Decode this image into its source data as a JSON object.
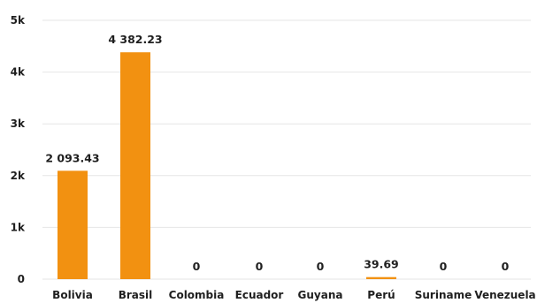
{
  "chart_data": {
    "type": "bar",
    "title": "",
    "xlabel": "",
    "ylabel": "",
    "categories": [
      "Bolivia",
      "Brasil",
      "Colombia",
      "Ecuador",
      "Guyana",
      "Perú",
      "Suriname",
      "Venezuela"
    ],
    "values": [
      2093.43,
      4382.23,
      0,
      0,
      0,
      39.69,
      0,
      0
    ],
    "data_labels": [
      "2 093.43",
      "4 382.23",
      "0",
      "0",
      "0",
      "39.69",
      "0",
      "0"
    ],
    "ylim": [
      0,
      5000
    ],
    "yticks": [
      0,
      1000,
      2000,
      3000,
      4000,
      5000
    ],
    "ytick_labels": [
      "0",
      "1k",
      "2k",
      "3k",
      "4k",
      "5k"
    ],
    "grid": true,
    "legend": "none",
    "bar_color": "#f29111",
    "grid_color": "#e6e6e6",
    "text_color": "#1f1f1f"
  }
}
